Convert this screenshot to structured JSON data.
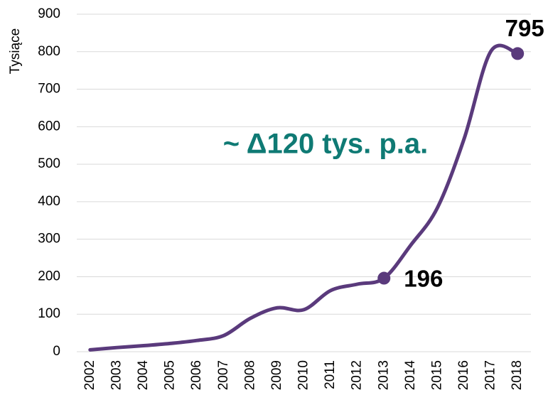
{
  "chart_data": {
    "type": "line",
    "y_label": "Tysiące",
    "annotation": "~ Δ120 tys. p.a.",
    "annotation_color": "#0f7a74",
    "categories": [
      "2002",
      "2003",
      "2004",
      "2005",
      "2006",
      "2007",
      "2008",
      "2009",
      "2010",
      "2011",
      "2012",
      "2013",
      "2014",
      "2015",
      "2016",
      "2017",
      "2018"
    ],
    "series": [
      {
        "name": "Tysiące",
        "color": "#5a3a7c",
        "values": [
          5,
          11,
          16,
          22,
          30,
          43,
          89,
          117,
          112,
          163,
          180,
          196,
          284,
          384,
          568,
          801,
          795
        ],
        "value_labels": [
          null,
          null,
          null,
          null,
          null,
          null,
          null,
          null,
          null,
          null,
          null,
          "196",
          null,
          null,
          null,
          null,
          "795"
        ]
      }
    ],
    "ylim": [
      0,
      900
    ],
    "yticks": [
      0,
      100,
      200,
      300,
      400,
      500,
      600,
      700,
      800,
      900
    ],
    "grid": true
  }
}
